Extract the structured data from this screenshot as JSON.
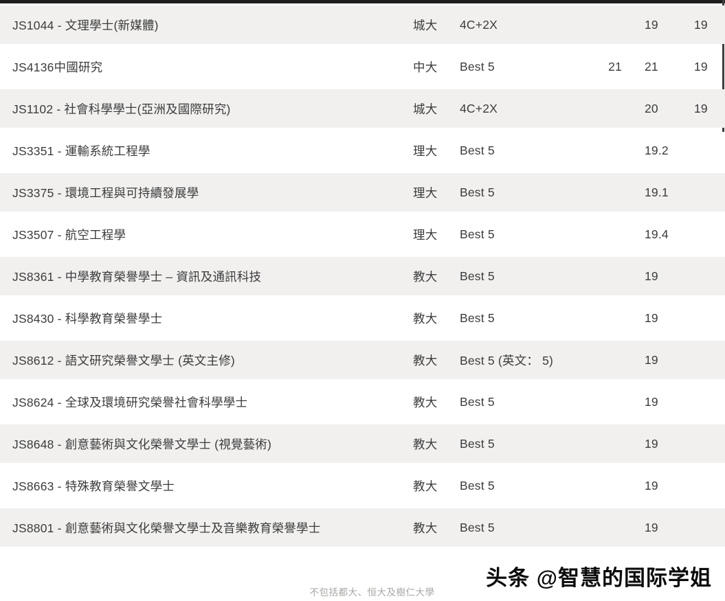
{
  "table": {
    "rows": [
      {
        "program": "JS1044 - 文理學士(新媒體)",
        "university": "城大",
        "method": "4C+2X",
        "score_a": "",
        "score_b": "19",
        "score_c": "19"
      },
      {
        "program": "JS4136中國研究",
        "university": "中大",
        "method": "Best 5",
        "score_a": "21",
        "score_b": "21",
        "score_c": "19"
      },
      {
        "program": "JS1102 - 社會科學學士(亞洲及國際研究)",
        "university": "城大",
        "method": "4C+2X",
        "score_a": "",
        "score_b": "20",
        "score_c": "19"
      },
      {
        "program": "JS3351 - 運輸系統工程學",
        "university": "理大",
        "method": "Best 5",
        "score_a": "",
        "score_b": "19.2",
        "score_c": ""
      },
      {
        "program": "JS3375 - 環境工程與可持續發展學",
        "university": "理大",
        "method": "Best 5",
        "score_a": "",
        "score_b": "19.1",
        "score_c": ""
      },
      {
        "program": "JS3507 - 航空工程學",
        "university": "理大",
        "method": "Best 5",
        "score_a": "",
        "score_b": "19.4",
        "score_c": ""
      },
      {
        "program": "JS8361 - 中學教育榮譽學士 – 資訊及通訊科技",
        "university": "教大",
        "method": "Best 5",
        "score_a": "",
        "score_b": "19",
        "score_c": ""
      },
      {
        "program": "JS8430 - 科學教育榮譽學士",
        "university": "教大",
        "method": "Best 5",
        "score_a": "",
        "score_b": "19",
        "score_c": ""
      },
      {
        "program": "JS8612 - 語文研究榮譽文學士 (英文主修)",
        "university": "教大",
        "method": "Best 5  (英文： 5)",
        "score_a": "",
        "score_b": "19",
        "score_c": ""
      },
      {
        "program": "JS8624 - 全球及環境研究榮譽社會科學學士",
        "university": "教大",
        "method": "Best 5",
        "score_a": "",
        "score_b": "19",
        "score_c": ""
      },
      {
        "program": "JS8648 - 創意藝術與文化榮譽文學士 (視覺藝術)",
        "university": "教大",
        "method": "Best 5",
        "score_a": "",
        "score_b": "19",
        "score_c": ""
      },
      {
        "program": "JS8663 - 特殊教育榮譽文學士",
        "university": "教大",
        "method": "Best 5",
        "score_a": "",
        "score_b": "19",
        "score_c": ""
      },
      {
        "program": "JS8801 - 創意藝術與文化榮譽文學士及音樂教育榮譽學士",
        "university": "教大",
        "method": "Best 5",
        "score_a": "",
        "score_b": "19",
        "score_c": ""
      }
    ]
  },
  "footer": {
    "note": "不包括都大、恒大及樹仁大學",
    "watermark": "头条 @智慧的国际学姐"
  },
  "colors": {
    "row_stripe": "#f1f0ef",
    "text": "#3c3c3c",
    "top_border": "#1e1e1e",
    "footnote": "#a9a6a3",
    "watermark": "#0b0b0b"
  }
}
